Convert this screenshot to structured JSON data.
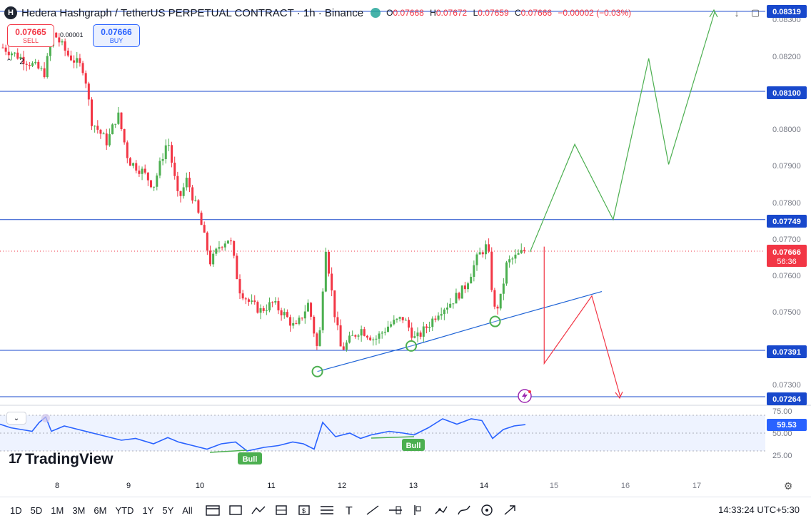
{
  "legend": {
    "symbol_icon": "hedera-logo-icon",
    "symbol_letter": "H",
    "title": "Hedera Hashgraph / TetherUS PERPETUAL CONTRACT · 1h · Binance",
    "ohlc": [
      {
        "k": "O",
        "v": "0.07668"
      },
      {
        "k": "H",
        "v": "0.07672"
      },
      {
        "k": "L",
        "v": "0.07659"
      },
      {
        "k": "C",
        "v": "0.07666"
      },
      {
        "k": "",
        "v": "−0.00002 (−0.03%)"
      }
    ]
  },
  "trade": {
    "sell_price": "0.07665",
    "sell_label": "SELL",
    "buy_price": "0.07666",
    "buy_label": "BUY",
    "spread": "0.00001"
  },
  "indicator_toggle": {
    "icon": "chevron-up-icon",
    "count": "2"
  },
  "price_axis": {
    "ticks": [
      "0.08300",
      "0.08200",
      "0.08000",
      "0.07900",
      "0.07800",
      "0.07700",
      "0.07600",
      "0.07500",
      "0.07300"
    ],
    "level_labels": [
      "0.08319",
      "0.08100",
      "0.07749",
      "0.07391",
      "0.07264"
    ],
    "current_price": "0.07666",
    "countdown": "56:36"
  },
  "rsi": {
    "ticks": [
      "75.00",
      "50.00",
      "25.00"
    ],
    "value": "59.53",
    "bull_labels": [
      "Bull",
      "Bull"
    ]
  },
  "time_axis": {
    "labels": [
      "8",
      "9",
      "10",
      "11",
      "12",
      "13",
      "14",
      "15",
      "16",
      "17"
    ]
  },
  "logo": {
    "text": "TradingView",
    "icon": "tradingview-logo-icon"
  },
  "bottombar": {
    "timeframes": [
      "1D",
      "5D",
      "1M",
      "3M",
      "6M",
      "YTD",
      "1Y",
      "5Y",
      "All"
    ],
    "tools": [
      "date-range-icon",
      "rectangle-icon",
      "path-icon",
      "long-position-icon",
      "short-position-icon",
      "channel-icon",
      "text-icon",
      "trendline-icon",
      "fib-icon",
      "bars-pattern-icon",
      "polyline-icon",
      "brush-icon",
      "measure-icon",
      "arrow-icon"
    ],
    "clock": "14:33:24 UTC+5:30"
  },
  "colors": {
    "up": "#4caf50",
    "down": "#f23645",
    "level": "#1848cc",
    "rsi": "#2962ff",
    "projection_up": "#4caf50",
    "projection_down": "#f23645"
  },
  "chart_data": {
    "type": "candlestick",
    "interval": "1h",
    "ylim": [
      0.0722,
      0.0835
    ],
    "horizontal_levels": [
      0.08319,
      0.081,
      0.07749,
      0.07391,
      0.07264
    ],
    "current_price": 0.07666,
    "trendline": [
      {
        "day": 11.66,
        "price": 0.07333
      },
      {
        "day": 12.98,
        "price": 0.07403
      },
      {
        "day": 14.16,
        "price": 0.0747
      },
      {
        "day": 15.66,
        "price": 0.07552
      }
    ],
    "touch_points": [
      {
        "day": 11.66,
        "price": 0.07333
      },
      {
        "day": 12.98,
        "price": 0.07403
      },
      {
        "day": 14.16,
        "price": 0.0747
      }
    ],
    "bullish_projection": [
      {
        "day": 14.65,
        "price": 0.0766
      },
      {
        "day": 15.28,
        "price": 0.07955
      },
      {
        "day": 15.82,
        "price": 0.07749
      },
      {
        "day": 16.32,
        "price": 0.0819
      },
      {
        "day": 16.6,
        "price": 0.079
      },
      {
        "day": 17.25,
        "price": 0.08319
      }
    ],
    "bearish_projection": [
      {
        "day": 14.85,
        "price": 0.07675
      },
      {
        "day": 14.85,
        "price": 0.07355
      },
      {
        "day": 15.52,
        "price": 0.0754
      },
      {
        "day": 15.92,
        "price": 0.07264
      }
    ],
    "rsi_levels": [
      70,
      50,
      30
    ],
    "rsi_last": 59.53
  }
}
